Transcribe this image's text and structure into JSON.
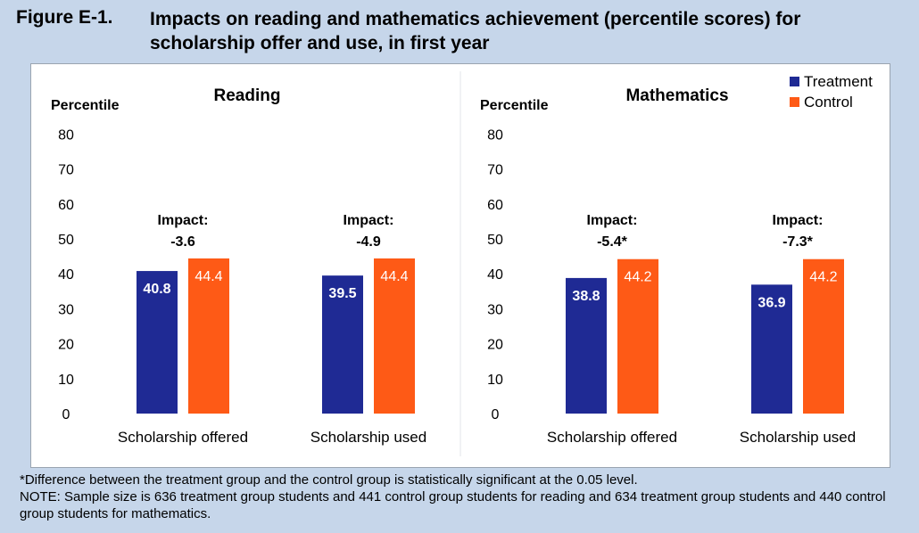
{
  "figure": {
    "number": "Figure E-1.",
    "title": "Impacts on reading and mathematics achievement (percentile scores) for scholarship offer and use, in first year"
  },
  "colors": {
    "treatment": "#1f2a94",
    "control": "#fe5a16",
    "page_bg": "#c6d6ea"
  },
  "legend": {
    "treatment_label": "Treatment",
    "control_label": "Control"
  },
  "notes": {
    "significance": "*Difference between the treatment group and the control group is statistically significant at the 0.05 level.",
    "sample": "NOTE: Sample size is 636 treatment group students and 441 control group students for reading and 634 treatment group students and 440 control group students for mathematics."
  },
  "chart_data": [
    {
      "type": "bar",
      "title": "Reading",
      "ylabel": "Percentile",
      "ylim": [
        0,
        80
      ],
      "yticks": [
        "0",
        "10",
        "20",
        "30",
        "40",
        "50",
        "60",
        "70",
        "80"
      ],
      "categories": [
        "Scholarship offered",
        "Scholarship used"
      ],
      "series": [
        {
          "name": "Treatment",
          "values": [
            40.8,
            39.5
          ],
          "labels": [
            "40.8",
            "39.5"
          ]
        },
        {
          "name": "Control",
          "values": [
            44.4,
            44.4
          ],
          "labels": [
            "44.4",
            "44.4"
          ]
        }
      ],
      "impacts": [
        {
          "label": "Impact:",
          "value": "-3.6"
        },
        {
          "label": "Impact:",
          "value": "-4.9"
        }
      ],
      "grid": false
    },
    {
      "type": "bar",
      "title": "Mathematics",
      "ylabel": "Percentile",
      "ylim": [
        0,
        80
      ],
      "yticks": [
        "0",
        "10",
        "20",
        "30",
        "40",
        "50",
        "60",
        "70",
        "80"
      ],
      "categories": [
        "Scholarship offered",
        "Scholarship used"
      ],
      "series": [
        {
          "name": "Treatment",
          "values": [
            38.8,
            36.9
          ],
          "labels": [
            "38.8",
            "36.9"
          ]
        },
        {
          "name": "Control",
          "values": [
            44.2,
            44.2
          ],
          "labels": [
            "44.2",
            "44.2"
          ]
        }
      ],
      "impacts": [
        {
          "label": "Impact:",
          "value": "-5.4*"
        },
        {
          "label": "Impact:",
          "value": "-7.3*"
        }
      ],
      "grid": false
    }
  ]
}
